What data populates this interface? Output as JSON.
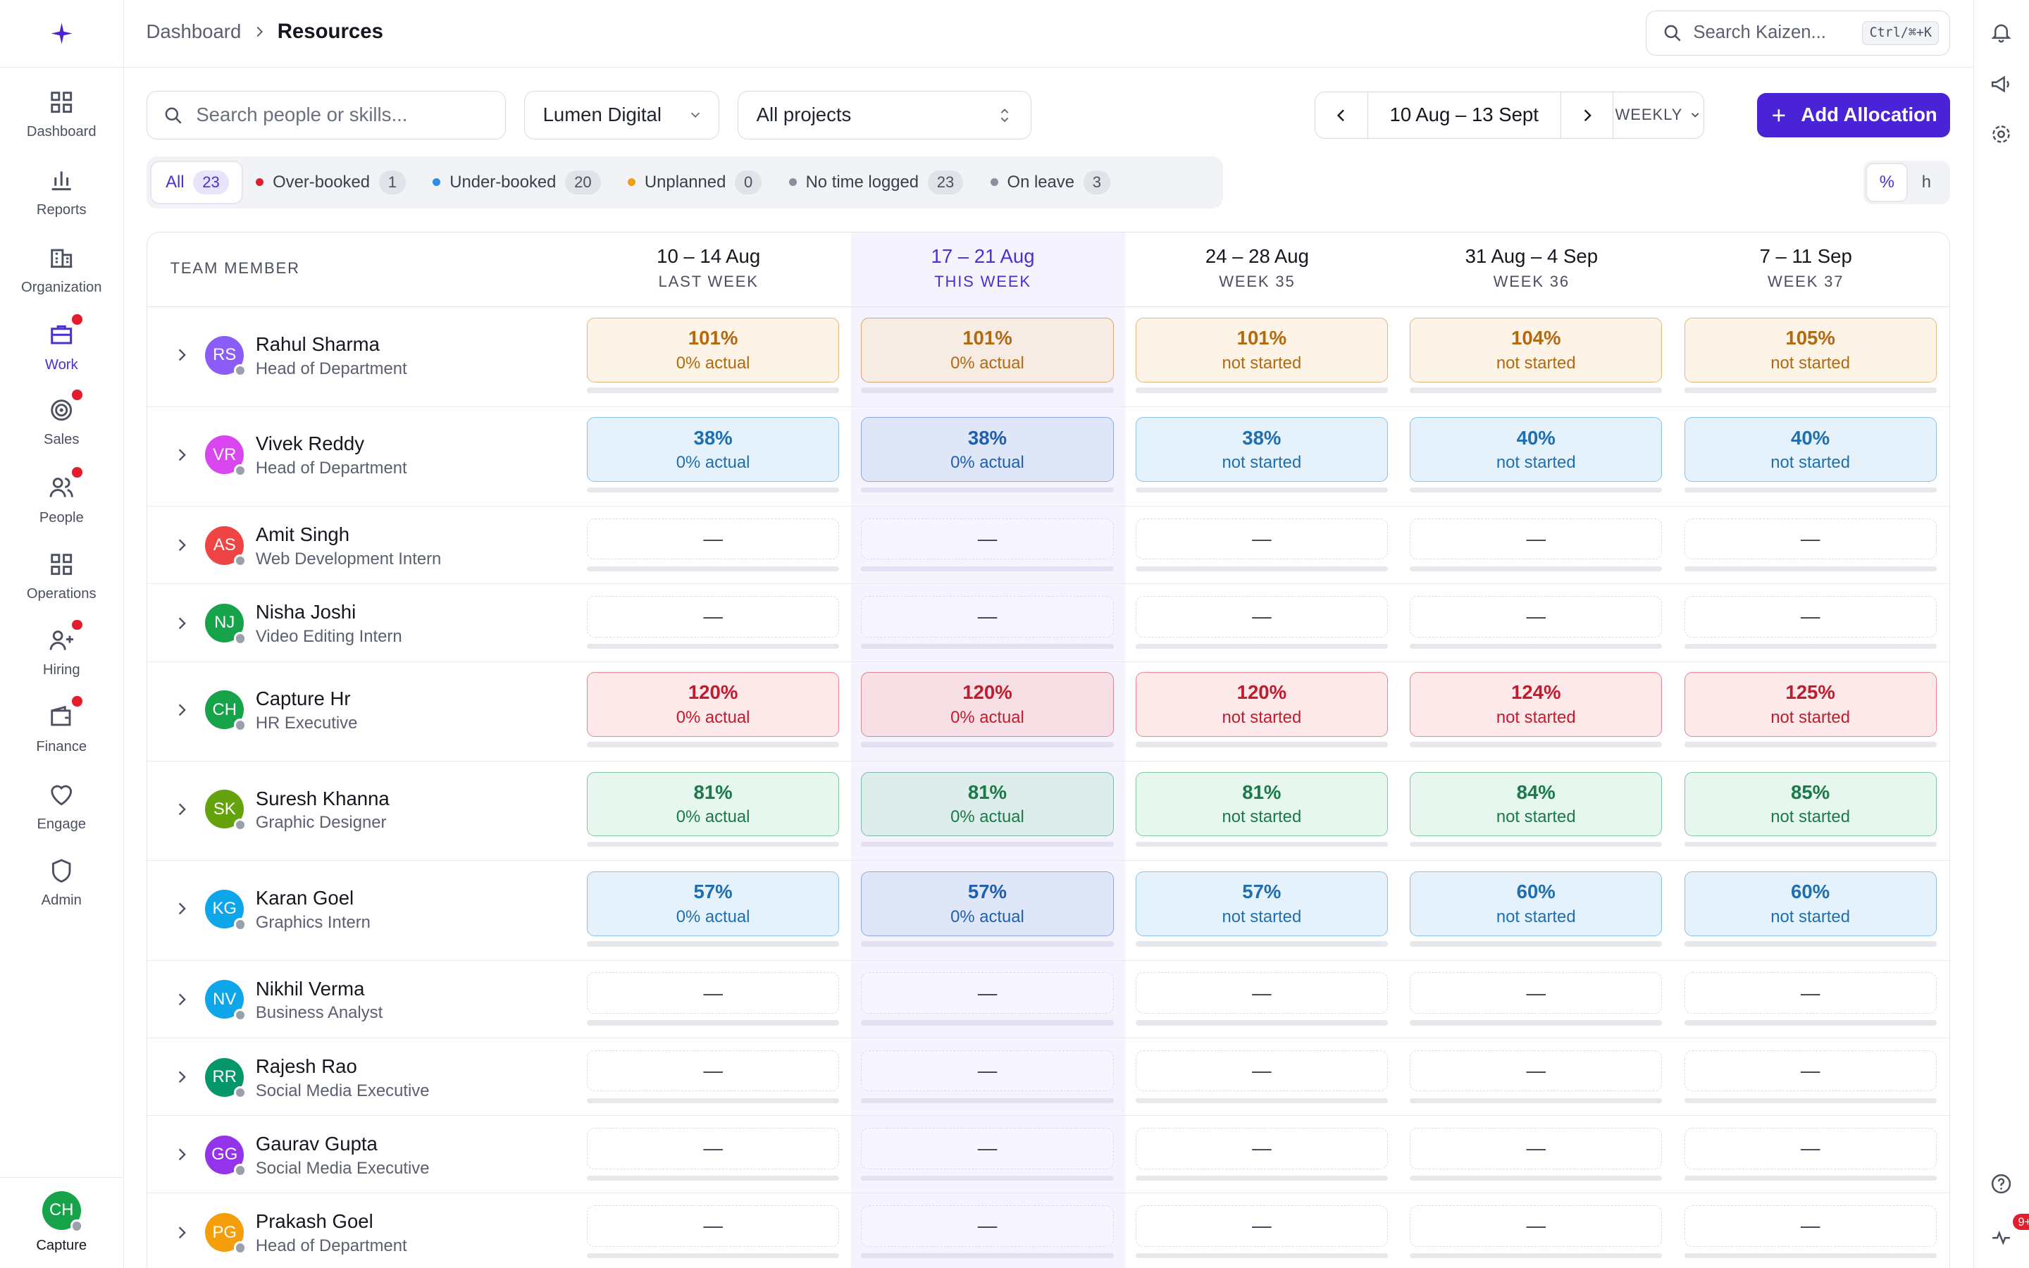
{
  "breadcrumb": {
    "parent": "Dashboard",
    "current": "Resources"
  },
  "top_search": {
    "placeholder": "Search Kaizen...",
    "shortcut": "Ctrl/⌘+K"
  },
  "sidebar": {
    "items": [
      {
        "label": "Dashboard",
        "icon": "grid-icon",
        "dot": false
      },
      {
        "label": "Reports",
        "icon": "bar-chart-icon",
        "dot": false
      },
      {
        "label": "Organization",
        "icon": "building-icon",
        "dot": false
      },
      {
        "label": "Work",
        "icon": "briefcase-icon",
        "dot": true,
        "active": true
      },
      {
        "label": "Sales",
        "icon": "target-icon",
        "dot": true
      },
      {
        "label": "People",
        "icon": "people-icon",
        "dot": true
      },
      {
        "label": "Operations",
        "icon": "grid-icon",
        "dot": false
      },
      {
        "label": "Hiring",
        "icon": "user-plus-icon",
        "dot": true
      },
      {
        "label": "Finance",
        "icon": "wallet-icon",
        "dot": true
      },
      {
        "label": "Engage",
        "icon": "heart-icon",
        "dot": false
      },
      {
        "label": "Admin",
        "icon": "shield-icon",
        "dot": false
      }
    ],
    "capture": {
      "initials": "CH",
      "label": "Capture"
    }
  },
  "filters": {
    "search_placeholder": "Search people or skills...",
    "company": "Lumen Digital",
    "projects": "All projects"
  },
  "date_nav": {
    "range": "10 Aug – 13 Sept",
    "period": "WEEKLY"
  },
  "add_button": "Add Allocation",
  "status_tabs": [
    {
      "label": "All",
      "count": "23",
      "color": ""
    },
    {
      "label": "Over-booked",
      "count": "1",
      "color": "#e11d2e"
    },
    {
      "label": "Under-booked",
      "count": "20",
      "color": "#2f8fe0"
    },
    {
      "label": "Unplanned",
      "count": "0",
      "color": "#f59e0b"
    },
    {
      "label": "No time logged",
      "count": "23",
      "color": "#8a8f9c"
    },
    {
      "label": "On leave",
      "count": "3",
      "color": "#8a8f9c"
    }
  ],
  "unit_toggle": {
    "percent": "%",
    "hours": "h"
  },
  "grid": {
    "member_header": "TEAM MEMBER",
    "weeks": [
      {
        "dates": "10 – 14 Aug",
        "sub": "LAST WEEK"
      },
      {
        "dates": "17 – 21 Aug",
        "sub": "THIS WEEK"
      },
      {
        "dates": "24 – 28 Aug",
        "sub": "WEEK 35"
      },
      {
        "dates": "31 Aug – 4 Sep",
        "sub": "WEEK 36"
      },
      {
        "dates": "7 – 11 Sep",
        "sub": "WEEK 37"
      }
    ],
    "empty_mark": "—",
    "members": [
      {
        "initials": "RS",
        "name": "Rahul Sharma",
        "role": "Head of Department",
        "avatar_color": "#8b5cf6",
        "tone": "over",
        "cells": [
          {
            "pct": "101%",
            "note": "0% actual"
          },
          {
            "pct": "101%",
            "note": "0% actual"
          },
          {
            "pct": "101%",
            "note": "not started"
          },
          {
            "pct": "104%",
            "note": "not started"
          },
          {
            "pct": "105%",
            "note": "not started"
          }
        ]
      },
      {
        "initials": "VR",
        "name": "Vivek Reddy",
        "role": "Head of Department",
        "avatar_color": "#d946ef",
        "tone": "blue",
        "cells": [
          {
            "pct": "38%",
            "note": "0% actual"
          },
          {
            "pct": "38%",
            "note": "0% actual"
          },
          {
            "pct": "38%",
            "note": "not started"
          },
          {
            "pct": "40%",
            "note": "not started"
          },
          {
            "pct": "40%",
            "note": "not started"
          }
        ]
      },
      {
        "initials": "AS",
        "name": "Amit Singh",
        "role": "Web Development Intern",
        "avatar_color": "#ef4444",
        "tone": "empty",
        "cells": []
      },
      {
        "initials": "NJ",
        "name": "Nisha Joshi",
        "role": "Video Editing Intern",
        "avatar_color": "#16a34a",
        "tone": "empty",
        "cells": []
      },
      {
        "initials": "CH",
        "name": "Capture Hr",
        "role": "HR Executive",
        "avatar_color": "#16a34a",
        "tone": "red",
        "cells": [
          {
            "pct": "120%",
            "note": "0% actual"
          },
          {
            "pct": "120%",
            "note": "0% actual"
          },
          {
            "pct": "120%",
            "note": "not started"
          },
          {
            "pct": "124%",
            "note": "not started"
          },
          {
            "pct": "125%",
            "note": "not started"
          }
        ]
      },
      {
        "initials": "SK",
        "name": "Suresh Khanna",
        "role": "Graphic Designer",
        "avatar_color": "#65a30d",
        "tone": "green",
        "cells": [
          {
            "pct": "81%",
            "note": "0% actual"
          },
          {
            "pct": "81%",
            "note": "0% actual"
          },
          {
            "pct": "81%",
            "note": "not started"
          },
          {
            "pct": "84%",
            "note": "not started"
          },
          {
            "pct": "85%",
            "note": "not started"
          }
        ]
      },
      {
        "initials": "KG",
        "name": "Karan Goel",
        "role": "Graphics Intern",
        "avatar_color": "#0ea5e9",
        "tone": "blue",
        "cells": [
          {
            "pct": "57%",
            "note": "0% actual"
          },
          {
            "pct": "57%",
            "note": "0% actual"
          },
          {
            "pct": "57%",
            "note": "not started"
          },
          {
            "pct": "60%",
            "note": "not started"
          },
          {
            "pct": "60%",
            "note": "not started"
          }
        ]
      },
      {
        "initials": "NV",
        "name": "Nikhil Verma",
        "role": "Business Analyst",
        "avatar_color": "#0ea5e9",
        "tone": "empty",
        "cells": []
      },
      {
        "initials": "RR",
        "name": "Rajesh Rao",
        "role": "Social Media Executive",
        "avatar_color": "#059669",
        "tone": "empty",
        "cells": []
      },
      {
        "initials": "GG",
        "name": "Gaurav Gupta",
        "role": "Social Media Executive",
        "avatar_color": "#9333ea",
        "tone": "empty",
        "cells": []
      },
      {
        "initials": "PG",
        "name": "Prakash Goel",
        "role": "Head of Department",
        "avatar_color": "#f59e0b",
        "tone": "empty",
        "cells": []
      }
    ]
  },
  "right_rail": {
    "notification_badge": "9+"
  }
}
